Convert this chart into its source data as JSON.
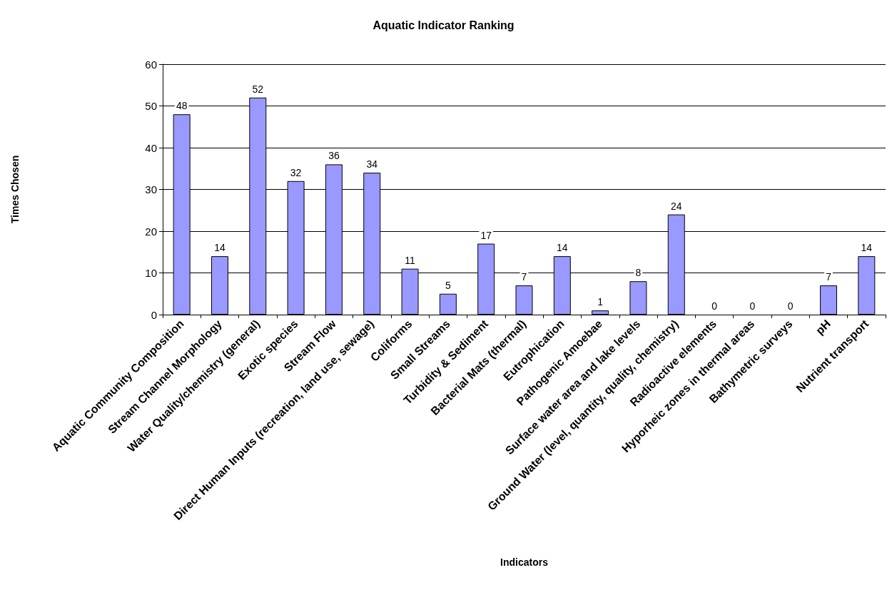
{
  "chart_data": {
    "type": "bar",
    "title": "Aquatic Indicator Ranking",
    "xlabel": "Indicators",
    "ylabel": "Times Chosen",
    "categories": [
      "Aquatic Community Composition",
      "Stream Channel Morphology",
      "Water Quality/chemistry (general)",
      "Exotic species",
      "Stream Flow",
      "Direct Human Inputs (recreation, land use, sewage)",
      "Coliforms",
      "Small Streams",
      "Turbidity & Sediment",
      "Bacterial Mats (thermal)",
      "Eutrophication",
      "Pathogenic Amoebae",
      "Surface water area and lake levels",
      "Ground Water (level, quantity, quality, chemistry)",
      "Radioactive elements",
      "Hyporheic zones in thermal areas",
      "Bathymetric surveys",
      "pH",
      "Nutrient transport"
    ],
    "values": [
      48,
      14,
      52,
      32,
      36,
      34,
      11,
      5,
      17,
      7,
      14,
      1,
      8,
      24,
      0,
      0,
      0,
      7,
      14
    ],
    "color": "#9999ff",
    "ylim": [
      0,
      60
    ],
    "yticks": [
      0,
      10,
      20,
      30,
      40,
      50,
      60
    ],
    "grid": "y",
    "data_labels": true
  }
}
